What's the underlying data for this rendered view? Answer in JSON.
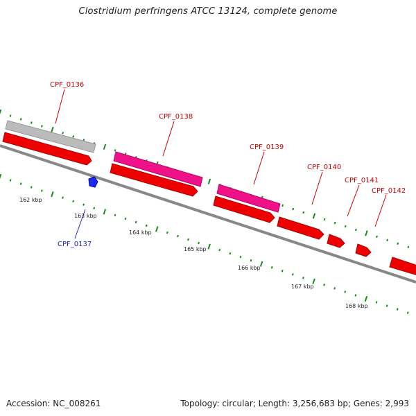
{
  "title": "Clostridium perfringens ATCC 13124, complete genome",
  "footer": {
    "accession": "Accession: NC_008261",
    "summary": "Topology: circular; Length: 3,256,683 bp; Genes: 2,993"
  },
  "colors": {
    "forward_gene": "#ee0000",
    "reverse_gene": "#ee0000",
    "rrna": "#ee1188",
    "pseudo": "#bbbbbb",
    "small_feature": "#1a2aee",
    "ticks": "#1a8a1a",
    "backbone": "#888888",
    "label_red": "#cc0000",
    "label_blue": "#2222cc"
  },
  "kbp_labels": [
    "162 kbp",
    "163 kbp",
    "164 kbp",
    "165 kbp",
    "166 kbp",
    "167 kbp",
    "168 kbp"
  ],
  "gene_labels": [
    {
      "name": "CPF_0136",
      "color": "red"
    },
    {
      "name": "CPF_0137",
      "color": "blue"
    },
    {
      "name": "CPF_0138",
      "color": "red"
    },
    {
      "name": "CPF_0139",
      "color": "red"
    },
    {
      "name": "CPF_0140",
      "color": "red"
    },
    {
      "name": "CPF_0141",
      "color": "red"
    },
    {
      "name": "CPF_0142",
      "color": "red"
    }
  ]
}
